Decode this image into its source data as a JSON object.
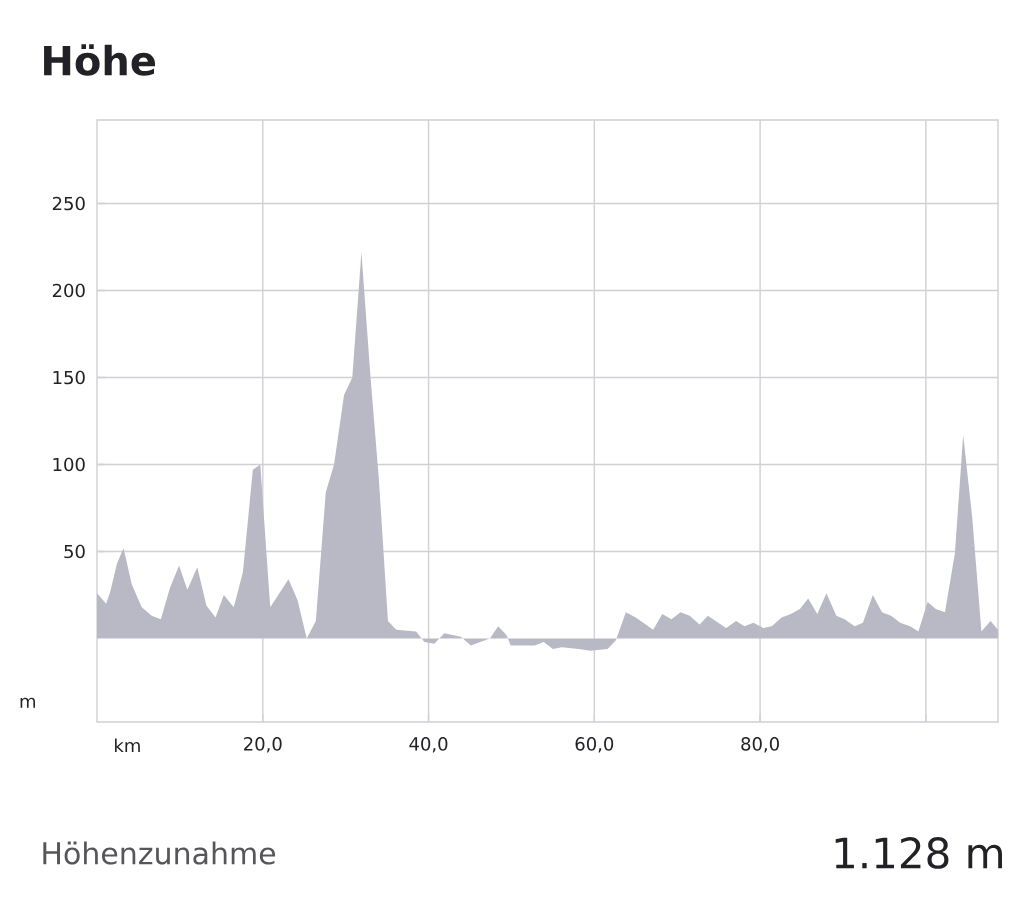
{
  "chart_data": {
    "type": "area",
    "title": "Höhe",
    "xlabel": "km",
    "ylabel": "m",
    "color": "#b9b9c6",
    "x": [
      0,
      1.1,
      1.6,
      2.4,
      3.2,
      4.2,
      5.4,
      6.6,
      7.7,
      8.8,
      9.9,
      10.9,
      12.1,
      13.2,
      14.3,
      15.3,
      16.5,
      17.6,
      18.8,
      19.7,
      20.9,
      23.1,
      24.2,
      25.3,
      26.4,
      27.6,
      28.6,
      29.8,
      30.8,
      31.9,
      33.0,
      34.0,
      35.1,
      36.1,
      38.5,
      39.5,
      40.7,
      41.9,
      43.9,
      45.1,
      47.4,
      48.4,
      49.4,
      49.9,
      52.8,
      53.9,
      55.0,
      56.1,
      58.1,
      59.5,
      61.6,
      62.6,
      63.8,
      65.0,
      67.1,
      68.2,
      69.3,
      70.4,
      71.5,
      72.7,
      73.7,
      75.9,
      77.1,
      78.1,
      79.2,
      80.4,
      81.4,
      82.6,
      83.7,
      84.8,
      85.8,
      86.9,
      88.0,
      89.2,
      90.2,
      91.4,
      92.4,
      93.6,
      94.7,
      95.8,
      96.9,
      98.1,
      99.1,
      100.2,
      101.2,
      102.3,
      103.5,
      104.5,
      105.6,
      106.7,
      107.8,
      108.7
    ],
    "values": [
      26,
      20,
      27,
      43,
      52,
      31,
      18,
      13,
      11,
      29,
      42,
      28,
      41,
      19,
      12,
      25,
      18,
      38,
      97,
      100,
      18,
      34,
      22,
      0,
      10,
      84,
      100,
      140,
      150,
      222,
      150,
      92,
      10,
      5,
      4,
      -2,
      -3,
      3,
      1,
      -4,
      0,
      7,
      2,
      -4,
      -4,
      -2,
      -6,
      -5,
      -6,
      -7,
      -6,
      -1,
      15,
      12,
      5,
      14,
      11,
      15,
      13,
      8,
      13,
      6,
      10,
      7,
      9,
      6,
      7,
      12,
      14,
      17,
      23,
      14,
      26,
      13,
      11,
      7,
      9,
      25,
      15,
      13,
      9,
      7,
      4,
      21,
      17,
      15,
      49,
      117,
      69,
      4,
      10,
      5
    ],
    "xlim": [
      0,
      108.7
    ],
    "ylim": [
      -48,
      298
    ],
    "xticks": [
      {
        "value": 20,
        "label": "20,0"
      },
      {
        "value": 40,
        "label": "40,0"
      },
      {
        "value": 60,
        "label": "60,0"
      },
      {
        "value": 80,
        "label": "80,0"
      },
      {
        "value": 100,
        "label": null
      }
    ],
    "yticks": [
      50,
      100,
      150,
      200,
      250
    ],
    "grid": true,
    "annotations": [
      "Höhenzunahme",
      "1.128 m"
    ]
  }
}
